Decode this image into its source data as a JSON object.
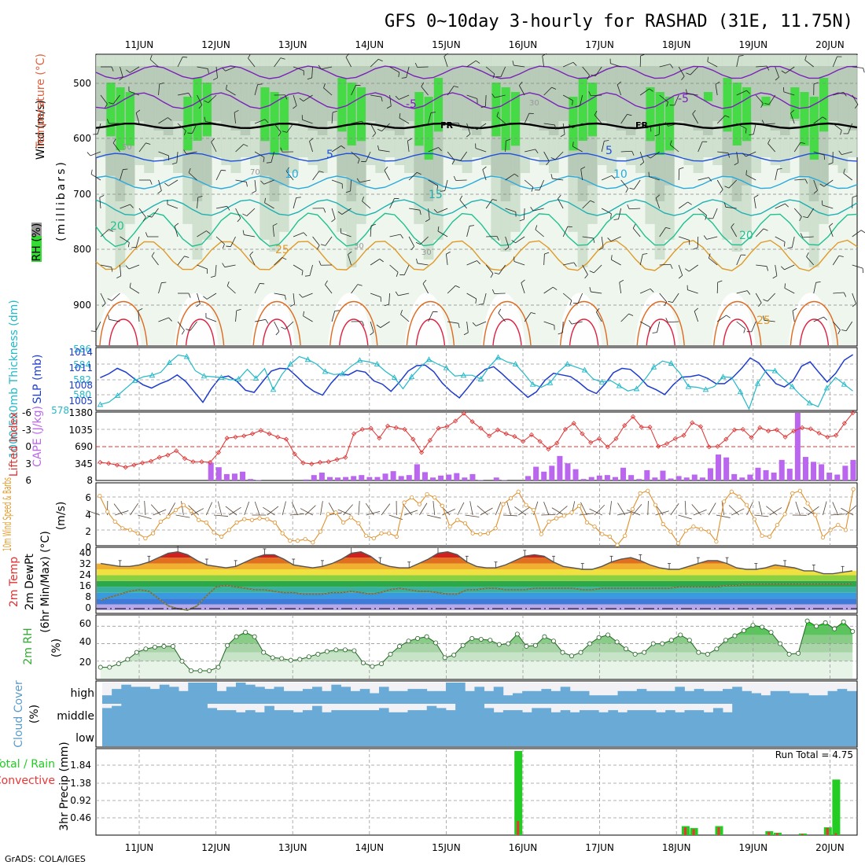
{
  "title": "GFS 0~10day 3-hourly for RASHAD (31E, 11.75N)",
  "footer": "GrADS: COLA/IGES",
  "dates": [
    "11JUN",
    "12JUN",
    "13JUN",
    "14JUN",
    "15JUN",
    "16JUN",
    "17JUN",
    "18JUN",
    "19JUN",
    "20JUN"
  ],
  "colors": {
    "green_light": "#e6f2e6",
    "green_mid": "#c8dcc8",
    "green_dark": "#a9baa9",
    "green_bright": "#33dd33",
    "green_vivid": "#11ee11",
    "purple": "#7b22b8",
    "black": "#000000",
    "blue": "#1e50dc",
    "cyan": "#2aaadc",
    "teal": "#20c090",
    "orange": "#e09a2a",
    "darkorange": "#e06a20",
    "red": "#e02040",
    "cloud": "#6aaad6",
    "precip_total": "#22cc22",
    "precip_conv": "#ee3333",
    "cape": "#bb66ee",
    "wind": "#e0902a",
    "slp": "#1e3ccc",
    "thick": "#22b8c8"
  },
  "panels": {
    "upper": {
      "ylabel_wind": "Wind (m/s)",
      "ylabel_temp": "Temperature (°C)",
      "ylabel_rh": "RH (%)",
      "ylabel_mb": "(millibars)",
      "yticks": [
        "500",
        "600",
        "700",
        "800",
        "900"
      ],
      "labels": {
        "fr1": "FR",
        "fr2": "FR",
        "iso_m5a": "-5",
        "iso_m5b": "-5",
        "iso_5a": "5",
        "iso_5b": "5",
        "iso_10a": "10",
        "iso_10b": "10",
        "iso_15": "15",
        "iso_20a": "20",
        "iso_20b": "20",
        "iso_25a": "25",
        "iso_25b": "25",
        "rh_30a": "30",
        "rh_30b": "30",
        "rh_30c": "30",
        "rh_50": "50",
        "rh_70": "70"
      }
    },
    "slp": {
      "ylabel_thick": "1000-500mb Thickness (dm)",
      "ylabel_slp": "SLP (mb)",
      "left_ticks": [
        "586",
        "584",
        "582",
        "580",
        "578"
      ],
      "right_ticks": [
        "1014",
        "1011",
        "1008",
        "1005"
      ]
    },
    "cape": {
      "ylabel_li": "Lifted Index",
      "ylabel_cape": "CAPE (J/kg)",
      "left_ticks": [
        "-6",
        "-3",
        "0",
        "3",
        "6"
      ],
      "right_ticks": [
        "1380",
        "1035",
        "690",
        "345",
        "8"
      ]
    },
    "wind10": {
      "ylabel": "10m Wind Speed & Barbs",
      "ylabel_units": "(m/s)",
      "yticks": [
        "6",
        "4",
        "2",
        "0"
      ]
    },
    "temp2m": {
      "ylabel_a": "2m Temp",
      "ylabel_b": "2m DewPt",
      "ylabel_c": "(6hr Min/Max) (°C)",
      "yticks": [
        "40",
        "32",
        "24",
        "16",
        "8",
        "0"
      ]
    },
    "rh2m": {
      "ylabel": "2m RH",
      "ylabel_units": "(%)",
      "yticks": [
        "60",
        "40",
        "20"
      ]
    },
    "cloud": {
      "ylabel": "Cloud Cover",
      "ylabel_units": "(%)",
      "levels": [
        "high",
        "middle",
        "low"
      ]
    },
    "precip": {
      "ylabel_total": "Total / Rain",
      "ylabel_conv": "Convective",
      "ylabel_units": "3hr Precip (mm)",
      "yticks": [
        "1.84",
        "1.38",
        "0.92",
        "0.46"
      ],
      "run_total": "Run Total = 4.75"
    }
  },
  "chart_data": {
    "type": "meteogram",
    "n_steps": 79,
    "thickness_dm": [
      578.6,
      578.9,
      579.8,
      580.8,
      581.8,
      582.3,
      582.5,
      582.9,
      584.2,
      585.2,
      585.0,
      583.1,
      582.4,
      582.3,
      582.2,
      581.9,
      582.0,
      583.3,
      582.1,
      583.4,
      580.6,
      582.6,
      584.0,
      585.0,
      584.6,
      584.0,
      583.0,
      582.6,
      582.7,
      583.7,
      584.5,
      584.3,
      584.0,
      583.0,
      582.2,
      580.7,
      582.3,
      583.6,
      584.6,
      584.0,
      583.5,
      582.4,
      582.5,
      582.5,
      582.0,
      583.7,
      584.9,
      584.3,
      584.0,
      582.7,
      581.3,
      580.9,
      581.5,
      583.0,
      584.0,
      583.6,
      583.2,
      582.0,
      581.6,
      581.8,
      581.1,
      580.4,
      580.7,
      582.0,
      583.6,
      584.4,
      584.1,
      582.8,
      581.0,
      580.9,
      580.6,
      581.0,
      582.3,
      582.2,
      580.3,
      578.0,
      581.4,
      583.2,
      583.1,
      582.0,
      581.0,
      579.8,
      578.8,
      578.3,
      580.8,
      582.2,
      581.3,
      580.4
    ],
    "slp_mb": [
      1009.5,
      1010.2,
      1011.2,
      1010.5,
      1009.3,
      1008.2,
      1007.6,
      1008.4,
      1009.0,
      1010.0,
      1008.8,
      1006.9,
      1005.0,
      1007.5,
      1009.5,
      1009.8,
      1008.8,
      1007.2,
      1006.8,
      1008.8,
      1010.7,
      1011.2,
      1011.1,
      1009.7,
      1008.1,
      1007.0,
      1006.3,
      1008.5,
      1010.2,
      1010.0,
      1010.8,
      1010.5,
      1008.9,
      1008.3,
      1007.0,
      1008.7,
      1010.7,
      1011.7,
      1011.8,
      1010.6,
      1008.5,
      1007.0,
      1005.8,
      1007.7,
      1009.7,
      1011.0,
      1011.5,
      1010.2,
      1008.7,
      1007.3,
      1005.9,
      1006.9,
      1009.0,
      1010.3,
      1010.0,
      1009.7,
      1008.6,
      1007.3,
      1006.6,
      1008.3,
      1010.4,
      1011.2,
      1011.0,
      1009.7,
      1008.0,
      1007.3,
      1006.4,
      1008.2,
      1009.6,
      1009.7,
      1010.0,
      1009.4,
      1008.4,
      1008.4,
      1009.6,
      1011.2,
      1013.1,
      1012.2,
      1010.2,
      1008.4,
      1007.8,
      1008.9,
      1011.6,
      1012.4,
      1010.5,
      1008.7,
      1010.3,
      1012.7,
      1013.7
    ],
    "lifted_index": [
      2.7,
      2.9,
      3.2,
      3.6,
      3.2,
      2.8,
      2.5,
      1.8,
      1.4,
      0.6,
      2.0,
      2.6,
      2.6,
      2.7,
      0.9,
      -1.7,
      -1.9,
      -2.1,
      -2.5,
      -3.1,
      -2.5,
      -1.9,
      -1.5,
      1.2,
      2.8,
      3.0,
      2.7,
      2.6,
      2.2,
      1.8,
      -2.5,
      -3.3,
      -3.5,
      -1.7,
      -3.9,
      -3.6,
      -3.3,
      -1.5,
      0.9,
      -1.3,
      -3.5,
      -3.8,
      -4.8,
      -6.2,
      -4.7,
      -3.5,
      -2.1,
      -3.2,
      -2.5,
      -2.0,
      -1.1,
      -2.3,
      -1.1,
      0.3,
      -0.8,
      -3.3,
      -4.4,
      -2.5,
      -0.9,
      -1.6,
      -0.1,
      -1.6,
      -4.0,
      -5.6,
      -3.7,
      -3.7,
      -0.2,
      -0.7,
      -1.6,
      -2.2,
      -4.5,
      -3.8,
      -0.1,
      -0.2,
      -1.5,
      -3.2,
      -3.3,
      -1.8,
      -3.6,
      -3.0,
      -3.2,
      -1.9,
      -3.0,
      -3.6,
      -3.4,
      -2.6,
      -1.9,
      -2.2,
      -4.4,
      -6.3
    ],
    "cape_jkg": [
      8,
      8,
      8,
      8,
      8,
      8,
      8,
      8,
      8,
      8,
      8,
      8,
      8,
      8,
      360,
      270,
      130,
      140,
      180,
      30,
      10,
      8,
      8,
      8,
      8,
      8,
      20,
      110,
      160,
      70,
      60,
      70,
      90,
      110,
      70,
      70,
      140,
      190,
      90,
      110,
      330,
      170,
      60,
      100,
      120,
      150,
      60,
      130,
      10,
      8,
      60,
      10,
      8,
      8,
      90,
      280,
      180,
      300,
      500,
      350,
      230,
      30,
      70,
      100,
      110,
      70,
      260,
      110,
      30,
      210,
      60,
      200,
      40,
      90,
      60,
      120,
      60,
      250,
      530,
      470,
      130,
      60,
      120,
      260,
      210,
      160,
      420,
      240,
      1380,
      480,
      380,
      330,
      160,
      120,
      300,
      420
    ],
    "wind10_ms": [
      6.0,
      4.1,
      2.9,
      2.1,
      1.9,
      1.5,
      0.9,
      1.5,
      2.9,
      3.5,
      4.3,
      4.9,
      4.2,
      3.1,
      2.8,
      1.6,
      1.1,
      1.9,
      2.8,
      3.2,
      3.1,
      3.3,
      3.2,
      2.8,
      1.5,
      0.6,
      0.6,
      0.8,
      0.4,
      1.7,
      3.8,
      4.0,
      2.8,
      3.4,
      2.7,
      1.2,
      0.9,
      1.5,
      1.5,
      1.1,
      5.2,
      5.8,
      5.0,
      6.2,
      5.8,
      4.8,
      2.3,
      3.1,
      2.7,
      1.5,
      1.4,
      1.5,
      2.1,
      5.0,
      5.7,
      6.5,
      4.9,
      4.3,
      1.4,
      2.9,
      3.3,
      3.6,
      4.0,
      4.8,
      2.8,
      2.3,
      1.4,
      1.1,
      0.1,
      1.2,
      4.4,
      6.3,
      6.6,
      4.9,
      2.6,
      1.7,
      0.3,
      1.8,
      2.3,
      2.0,
      1.7,
      0.5,
      5.3,
      6.5,
      5.9,
      4.9,
      3.2,
      1.2,
      1.1,
      2.5,
      3.8,
      6.3,
      6.6,
      5.1,
      3.7,
      1.0,
      1.9,
      2.5,
      1.9,
      6.8
    ],
    "temp2m_c": [
      32,
      31,
      30,
      30,
      31,
      33,
      36,
      39,
      40,
      38,
      34,
      31,
      30,
      29,
      30,
      33,
      36,
      38,
      38,
      35,
      31,
      30,
      29,
      30,
      32,
      35,
      39,
      40,
      37,
      32,
      30,
      29,
      29,
      32,
      35,
      39,
      40,
      38,
      33,
      30,
      29,
      29,
      31,
      34,
      37,
      38,
      37,
      33,
      30,
      29,
      28,
      28,
      30,
      33,
      35,
      36,
      34,
      31,
      29,
      28,
      28,
      30,
      32,
      34,
      34,
      32,
      29,
      28,
      28,
      29,
      31,
      30,
      29,
      27,
      27,
      25,
      25,
      26,
      27
    ],
    "dewpt2m_c": [
      7,
      9,
      11,
      13,
      14,
      13,
      8,
      3,
      1,
      0,
      3,
      10,
      16,
      17,
      16,
      15,
      14,
      14,
      13,
      12,
      12,
      11,
      11,
      11,
      12,
      12,
      13,
      12,
      11,
      12,
      14,
      15,
      14,
      13,
      13,
      12,
      11,
      11,
      14,
      14,
      15,
      15,
      14,
      14,
      14,
      15,
      15,
      15,
      15,
      15,
      14,
      14,
      15,
      15,
      15,
      15,
      15,
      15,
      15,
      15,
      16,
      16,
      16,
      16,
      16,
      17,
      17,
      18,
      18,
      18,
      18,
      18,
      18,
      18,
      18,
      18,
      18,
      18,
      18
    ],
    "rh2m_pct": [
      13,
      13,
      17,
      22,
      30,
      34,
      36,
      37,
      37,
      20,
      9,
      9,
      9,
      13,
      38,
      48,
      53,
      48,
      30,
      24,
      23,
      21,
      22,
      25,
      28,
      31,
      33,
      33,
      32,
      18,
      14,
      17,
      28,
      37,
      43,
      46,
      48,
      41,
      24,
      27,
      38,
      46,
      45,
      44,
      39,
      40,
      51,
      37,
      38,
      48,
      43,
      30,
      26,
      30,
      40,
      47,
      50,
      42,
      34,
      28,
      30,
      40,
      40,
      44,
      50,
      44,
      30,
      28,
      34,
      44,
      49,
      55,
      61,
      59,
      53,
      40,
      28,
      29,
      66,
      60,
      64,
      57,
      65,
      54
    ],
    "cloud_high_pct": [
      40,
      70,
      90,
      80,
      80,
      70,
      90,
      80,
      60,
      100,
      100,
      100,
      60,
      80,
      100,
      90,
      80,
      70,
      80,
      60,
      60,
      70,
      80,
      60,
      90,
      80,
      60,
      70,
      50,
      80,
      60,
      60,
      70,
      70,
      60,
      60,
      100,
      100,
      60,
      80,
      60,
      80,
      40,
      50,
      60,
      60,
      70,
      60,
      80,
      60,
      60,
      40,
      40,
      40,
      60,
      60,
      70,
      60,
      60,
      60,
      80,
      60,
      70,
      60,
      60,
      70,
      80,
      60,
      50,
      40,
      60,
      60,
      50,
      50,
      40,
      40,
      60,
      70,
      60
    ],
    "cloud_mid_pct": [
      80,
      90,
      100,
      100,
      100,
      100,
      100,
      100,
      100,
      100,
      100,
      80,
      70,
      70,
      60,
      70,
      60,
      90,
      70,
      70,
      60,
      70,
      90,
      60,
      70,
      70,
      70,
      70,
      70,
      80,
      60,
      60,
      70,
      70,
      90,
      80,
      70,
      100,
      100,
      100,
      80,
      60,
      70,
      70,
      60,
      80,
      80,
      60,
      70,
      60,
      70,
      70,
      60,
      70,
      60,
      70,
      70,
      70,
      60,
      70,
      60,
      70,
      70,
      60,
      80,
      60,
      100,
      100,
      100,
      100,
      100,
      100,
      100,
      100,
      100,
      100,
      100,
      100,
      100
    ],
    "cloud_low_pct": [
      100,
      100,
      100,
      100,
      100,
      100,
      100,
      100,
      100,
      100,
      100,
      100,
      100,
      100,
      100,
      100,
      100,
      100,
      100,
      100,
      100,
      100,
      100,
      100,
      100,
      100,
      100,
      100,
      100,
      100,
      100,
      100,
      100,
      100,
      100,
      100,
      100,
      100,
      100,
      100,
      100,
      100,
      100,
      100,
      100,
      100,
      100,
      100,
      100,
      100,
      100,
      100,
      100,
      100,
      100,
      100,
      100,
      100,
      100,
      100,
      100,
      100,
      100,
      100,
      100,
      100,
      100,
      100,
      100,
      100,
      100,
      100,
      100,
      100,
      100,
      100,
      100,
      100,
      100
    ],
    "precip_total_mm": [
      0,
      0,
      0,
      0,
      0,
      0,
      0,
      0,
      0,
      0,
      0,
      0,
      0,
      0,
      0,
      0,
      0,
      0,
      0,
      0,
      0,
      0,
      0,
      0,
      0,
      0,
      0,
      0,
      0,
      0,
      0,
      0,
      0,
      0,
      0,
      0,
      0,
      0,
      0,
      0,
      0,
      0,
      0,
      0,
      0,
      0,
      0,
      0,
      0,
      0,
      2.15,
      0,
      0,
      0,
      0,
      0,
      0,
      0,
      0,
      0,
      0,
      0,
      0,
      0,
      0,
      0,
      0,
      0,
      0,
      0,
      0.23,
      0.18,
      0,
      0,
      0.23,
      0,
      0,
      0,
      0,
      0,
      0.1,
      0.06,
      0,
      0,
      0.04,
      0,
      0,
      0.2,
      1.42,
      0,
      0
    ],
    "precip_conv_mm": [
      0,
      0,
      0,
      0,
      0,
      0,
      0,
      0,
      0,
      0,
      0,
      0,
      0,
      0,
      0,
      0,
      0,
      0,
      0,
      0,
      0,
      0,
      0,
      0,
      0,
      0,
      0,
      0,
      0,
      0,
      0,
      0,
      0,
      0,
      0,
      0,
      0,
      0,
      0,
      0,
      0,
      0,
      0,
      0,
      0,
      0,
      0,
      0,
      0,
      0,
      0.36,
      0,
      0,
      0,
      0,
      0,
      0,
      0,
      0,
      0,
      0,
      0,
      0,
      0,
      0,
      0,
      0,
      0,
      0,
      0,
      0.2,
      0.15,
      0,
      0,
      0.2,
      0,
      0,
      0,
      0,
      0,
      0.08,
      0.05,
      0,
      0,
      0.03,
      0,
      0,
      0.18,
      0.05,
      0,
      0
    ],
    "isotherms_c": [
      -5,
      0,
      5,
      10,
      15,
      20,
      25,
      30,
      35
    ]
  }
}
